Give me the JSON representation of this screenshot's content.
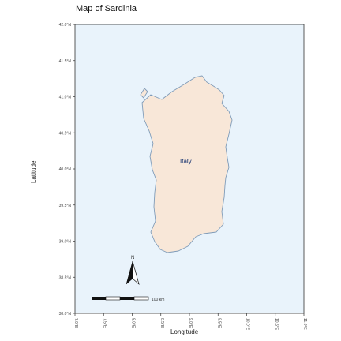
{
  "title": "Map of Sardinia",
  "axes": {
    "xlabel": "Longitude",
    "ylabel": "Latitude",
    "lat_ticks": [
      "42.0°N",
      "41.5°N",
      "41.0°N",
      "40.5°N",
      "40.0°N",
      "39.5°N",
      "39.0°N",
      "38.5°N",
      "38.0°N"
    ],
    "lon_ticks": [
      "7.0°E",
      "7.5°E",
      "8.0°E",
      "8.5°E",
      "9.0°E",
      "9.5°E",
      "10.0°E",
      "10.5°E",
      "11.0°E"
    ]
  },
  "land": {
    "label": "Italy",
    "fill_color": "#f8e7d8",
    "border_color": "#7f9bb8"
  },
  "sea_color": "#e9f3fb",
  "north_arrow": {
    "label": "N"
  },
  "scale_bar": {
    "label": "100 km"
  }
}
